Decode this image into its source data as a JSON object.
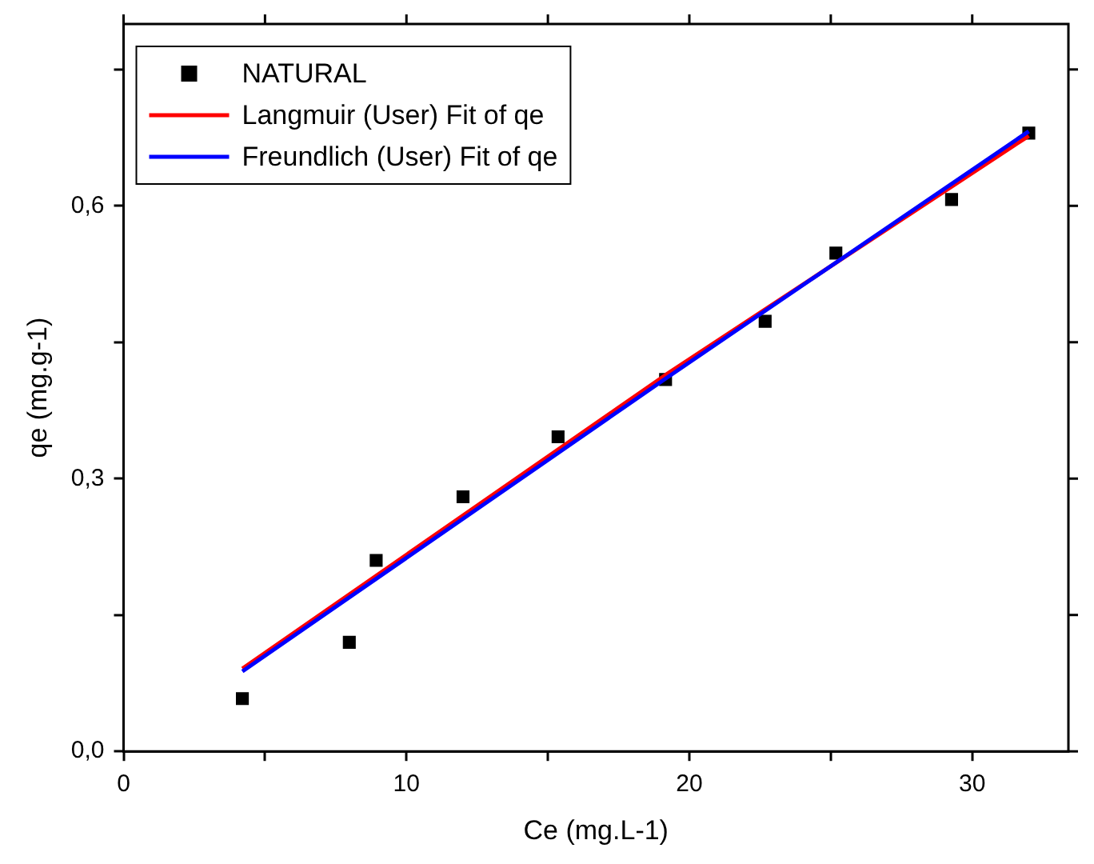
{
  "chart_data": {
    "type": "scatter",
    "xlabel": "Ce (mg.L-1)",
    "ylabel": "qe (mg.g-1)",
    "xlim": [
      0,
      33.4
    ],
    "ylim": [
      0,
      0.8
    ],
    "xticks": [
      0,
      {
        "value": 5,
        "label": null
      },
      10,
      {
        "value": 15,
        "label": null
      },
      20,
      {
        "value": 25,
        "label": null
      },
      30
    ],
    "yticks": [
      {
        "value": 0,
        "label": "0,0"
      },
      {
        "value": 0.15,
        "label": null
      },
      {
        "value": 0.3,
        "label": "0,3"
      },
      {
        "value": 0.45,
        "label": null
      },
      {
        "value": 0.6,
        "label": "0,6"
      },
      {
        "value": 0.75,
        "label": null
      }
    ],
    "grid": false,
    "legend": "top left",
    "series": [
      {
        "name": "NATURAL",
        "marker": "square",
        "color": "#000000",
        "x": [
          4.2,
          7.98,
          8.93,
          12.0,
          15.36,
          19.16,
          22.68,
          25.18,
          29.27,
          32.0
        ],
        "values": [
          0.058,
          0.12,
          0.21,
          0.28,
          0.346,
          0.409,
          0.473,
          0.548,
          0.607,
          0.68
        ]
      },
      {
        "name": "Langmuir (User) Fit of qe",
        "type": "line",
        "marker": "none",
        "color": "#ff0000",
        "x": [
          4.2,
          19.16,
          32.0
        ],
        "values": [
          0.091,
          0.414,
          0.677
        ]
      },
      {
        "name": "Freundlich (User) Fit of qe",
        "type": "line",
        "marker": "none",
        "color": "#0000ff",
        "x": [
          4.2,
          19.16,
          32.0
        ],
        "values": [
          0.088,
          0.41,
          0.682
        ]
      }
    ]
  }
}
